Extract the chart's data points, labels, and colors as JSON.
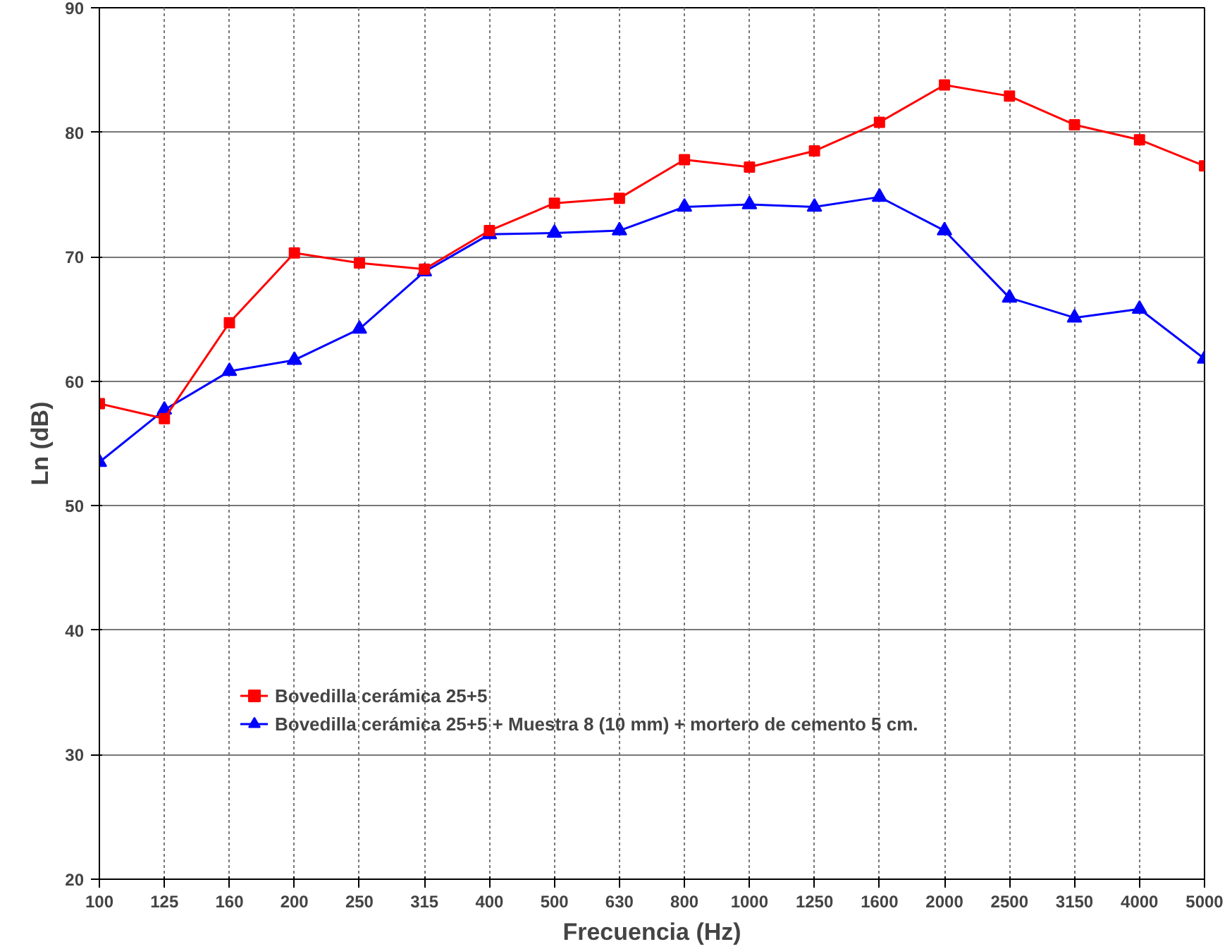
{
  "chart_data": {
    "type": "line",
    "xlabel": "Frecuencia (Hz)",
    "ylabel": "Ln (dB)",
    "categories": [
      "100",
      "125",
      "160",
      "200",
      "250",
      "315",
      "400",
      "500",
      "630",
      "800",
      "1000",
      "1250",
      "1600",
      "2000",
      "2500",
      "3150",
      "4000",
      "5000"
    ],
    "series": [
      {
        "name": "Bovedilla cerámica 25+5",
        "color": "#ff0000",
        "marker": "square",
        "values": [
          58.2,
          57.0,
          64.7,
          70.3,
          69.5,
          69.0,
          72.1,
          74.3,
          74.7,
          77.8,
          77.2,
          78.5,
          80.8,
          83.8,
          82.9,
          80.6,
          79.4,
          77.3
        ]
      },
      {
        "name": "Bovedilla cerámica 25+5 + Muestra 8 (10 mm) + mortero de cemento 5 cm.",
        "color": "#0000ff",
        "marker": "triangle",
        "values": [
          53.5,
          57.7,
          60.8,
          61.7,
          64.2,
          68.8,
          71.8,
          71.9,
          72.1,
          74.0,
          74.2,
          74.0,
          74.8,
          72.1,
          66.7,
          65.1,
          65.8,
          61.8
        ]
      }
    ],
    "ylim": [
      20,
      90
    ],
    "yticks": [
      20,
      30,
      40,
      50,
      60,
      70,
      80,
      90
    ],
    "grid": true,
    "legend": "bottom left",
    "line_style": "solid"
  }
}
